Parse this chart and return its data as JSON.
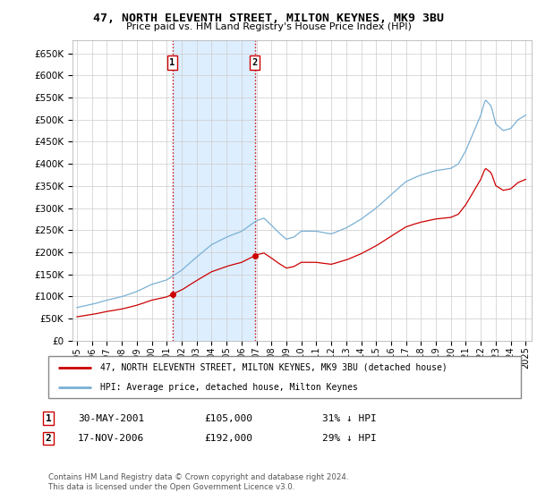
{
  "title": "47, NORTH ELEVENTH STREET, MILTON KEYNES, MK9 3BU",
  "subtitle": "Price paid vs. HM Land Registry's House Price Index (HPI)",
  "legend_label_red": "47, NORTH ELEVENTH STREET, MILTON KEYNES, MK9 3BU (detached house)",
  "legend_label_blue": "HPI: Average price, detached house, Milton Keynes",
  "footer": "Contains HM Land Registry data © Crown copyright and database right 2024.\nThis data is licensed under the Open Government Licence v3.0.",
  "transactions": [
    {
      "label": "1",
      "date": "30-MAY-2001",
      "price": 105000,
      "pct": "31% ↓ HPI",
      "x": 2001.38
    },
    {
      "label": "2",
      "date": "17-NOV-2006",
      "price": 192000,
      "pct": "29% ↓ HPI",
      "x": 2006.88
    }
  ],
  "vline_color": "#cc0000",
  "vline_style": ":",
  "red_color": "#cc0000",
  "blue_color": "#7ab0d4",
  "shade_color": "#ddeeff",
  "background_color": "#ffffff",
  "grid_color": "#cccccc",
  "ylim": [
    0,
    680000
  ],
  "yticks": [
    0,
    50000,
    100000,
    150000,
    200000,
    250000,
    300000,
    350000,
    400000,
    450000,
    500000,
    550000,
    600000,
    650000
  ],
  "xlim_start": 1994.7,
  "xlim_end": 2025.4
}
